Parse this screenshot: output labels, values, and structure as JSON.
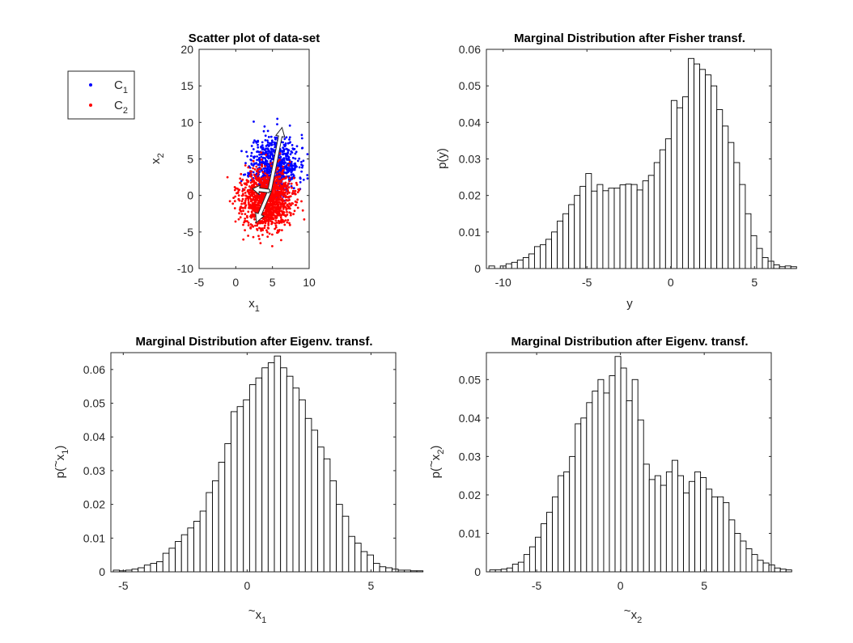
{
  "chart_data": [
    {
      "id": "scatter",
      "type": "scatter",
      "title": "Scatter plot of data-set",
      "xlabel": "x",
      "xlabel_sub": "1",
      "ylabel": "x",
      "ylabel_sub": "2",
      "xlim": [
        -5,
        10
      ],
      "ylim": [
        -10,
        20
      ],
      "xticks": [
        -5,
        0,
        5,
        10
      ],
      "yticks": [
        -10,
        -5,
        0,
        5,
        10,
        15,
        20
      ],
      "grid": false,
      "legend": {
        "placement": "left-outside",
        "entries": [
          {
            "label": "C",
            "sub": "1",
            "color": "#0000ff"
          },
          {
            "label": "C",
            "sub": "2",
            "color": "#ff0000"
          }
        ]
      },
      "series": [
        {
          "name": "C1",
          "color": "#0000ff",
          "center": [
            5.3,
            4.3
          ],
          "spread": [
            1.6,
            2.0
          ],
          "n": 700,
          "seed": 11
        },
        {
          "name": "C2",
          "color": "#ff0000",
          "center": [
            4.2,
            -0.6
          ],
          "spread": [
            1.7,
            2.0
          ],
          "n": 1300,
          "seed": 23
        }
      ],
      "arrows": [
        {
          "from": [
            4.6,
            0.6
          ],
          "to": [
            6.3,
            9.3
          ]
        },
        {
          "from": [
            4.6,
            0.6
          ],
          "to": [
            2.8,
            -3.7
          ]
        },
        {
          "from": [
            4.6,
            0.6
          ],
          "to": [
            2.3,
            0.9
          ]
        }
      ]
    },
    {
      "id": "fisher",
      "type": "bar",
      "title": "Marginal Distribution after Fisher transf.",
      "xlabel": "y",
      "xlabel_tilde": false,
      "xlabel_sub": "",
      "ylabel": "p(y)",
      "ylabel_tilde": false,
      "ylabel_sub": "",
      "xlim": [
        -11,
        6
      ],
      "ylim": [
        0,
        0.06
      ],
      "xticks": [
        -10,
        -5,
        0,
        5
      ],
      "yticks": [
        0,
        0.01,
        0.02,
        0.03,
        0.04,
        0.05,
        0.06
      ],
      "ytick_labels": [
        "0",
        "0.01",
        "0.02",
        "0.03",
        "0.04",
        "0.05",
        "0.06"
      ],
      "bin_start": -10.85,
      "bin_width": 0.34,
      "values": [
        0.0007,
        0.0,
        0.0007,
        0.0013,
        0.0017,
        0.0023,
        0.003,
        0.004,
        0.006,
        0.0065,
        0.008,
        0.01,
        0.013,
        0.015,
        0.0175,
        0.02,
        0.0225,
        0.026,
        0.0212,
        0.023,
        0.0213,
        0.022,
        0.022,
        0.0229,
        0.0231,
        0.023,
        0.0215,
        0.024,
        0.0255,
        0.029,
        0.0325,
        0.0355,
        0.046,
        0.044,
        0.047,
        0.0575,
        0.056,
        0.0545,
        0.053,
        0.05,
        0.0435,
        0.039,
        0.0345,
        0.029,
        0.023,
        0.015,
        0.009,
        0.0055,
        0.003,
        0.002,
        0.001,
        0.0005,
        0.0007,
        0.0005
      ]
    },
    {
      "id": "eig1",
      "type": "bar",
      "title": "Marginal Distribution after Eigenv. transf.",
      "xlabel": "x",
      "xlabel_tilde": true,
      "xlabel_sub": "1",
      "ylabel": "p(",
      "ylabel_tilde": true,
      "ylabel_sub": "1",
      "xlim": [
        -5.5,
        6
      ],
      "ylim": [
        0,
        0.065
      ],
      "xticks": [
        -5,
        0,
        5
      ],
      "yticks": [
        0,
        0.01,
        0.02,
        0.03,
        0.04,
        0.05,
        0.06
      ],
      "ytick_labels": [
        "0",
        "0.01",
        "0.02",
        "0.03",
        "0.04",
        "0.05",
        "0.06"
      ],
      "bin_start": -5.4,
      "bin_width": 0.25,
      "values": [
        0.0005,
        0.0003,
        0.0005,
        0.0008,
        0.0012,
        0.002,
        0.0025,
        0.003,
        0.0055,
        0.007,
        0.009,
        0.011,
        0.013,
        0.015,
        0.018,
        0.0235,
        0.027,
        0.0325,
        0.038,
        0.0475,
        0.049,
        0.051,
        0.0555,
        0.0575,
        0.0605,
        0.062,
        0.064,
        0.0605,
        0.058,
        0.0545,
        0.051,
        0.0455,
        0.042,
        0.037,
        0.0335,
        0.027,
        0.02,
        0.0165,
        0.0105,
        0.0085,
        0.006,
        0.005,
        0.0025,
        0.0015,
        0.0012,
        0.0008,
        0.0005,
        0.0005,
        0.0003,
        0.0003
      ]
    },
    {
      "id": "eig2",
      "type": "bar",
      "title": "Marginal Distribution after Eigenv. transf.",
      "xlabel": "x",
      "xlabel_tilde": true,
      "xlabel_sub": "2",
      "ylabel": "p(",
      "ylabel_tilde": true,
      "ylabel_sub": "2",
      "xlim": [
        -8,
        9
      ],
      "ylim": [
        0,
        0.057
      ],
      "xticks": [
        -5,
        0,
        5
      ],
      "yticks": [
        0,
        0.01,
        0.02,
        0.03,
        0.04,
        0.05
      ],
      "ytick_labels": [
        "0",
        "0.01",
        "0.02",
        "0.03",
        "0.04",
        "0.05"
      ],
      "bin_start": -7.8,
      "bin_width": 0.34,
      "values": [
        0.0005,
        0.0005,
        0.0007,
        0.001,
        0.002,
        0.0025,
        0.0045,
        0.0065,
        0.009,
        0.0125,
        0.0155,
        0.0195,
        0.025,
        0.026,
        0.03,
        0.0385,
        0.04,
        0.044,
        0.047,
        0.05,
        0.0465,
        0.051,
        0.056,
        0.053,
        0.0445,
        0.05,
        0.0395,
        0.028,
        0.024,
        0.025,
        0.0225,
        0.026,
        0.029,
        0.025,
        0.0205,
        0.0235,
        0.026,
        0.0245,
        0.0215,
        0.0195,
        0.0195,
        0.018,
        0.0135,
        0.01,
        0.008,
        0.006,
        0.0045,
        0.003,
        0.0023,
        0.0018,
        0.001,
        0.0007,
        0.0005
      ]
    }
  ]
}
